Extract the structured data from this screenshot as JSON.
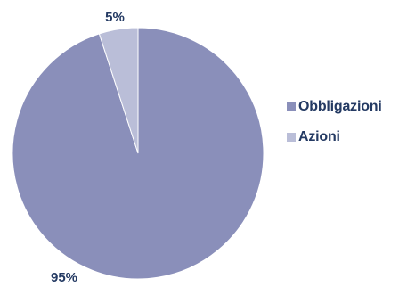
{
  "chart_data": {
    "type": "pie",
    "title": "",
    "slices": [
      {
        "label": "Obbligazioni",
        "value": 95,
        "display": "95%",
        "color": "#8a8fba"
      },
      {
        "label": "Azioni",
        "value": 5,
        "display": "5%",
        "color": "#babed8"
      }
    ],
    "start_angle": "12 o'clock",
    "direction": "clockwise",
    "legend_position": "right"
  }
}
